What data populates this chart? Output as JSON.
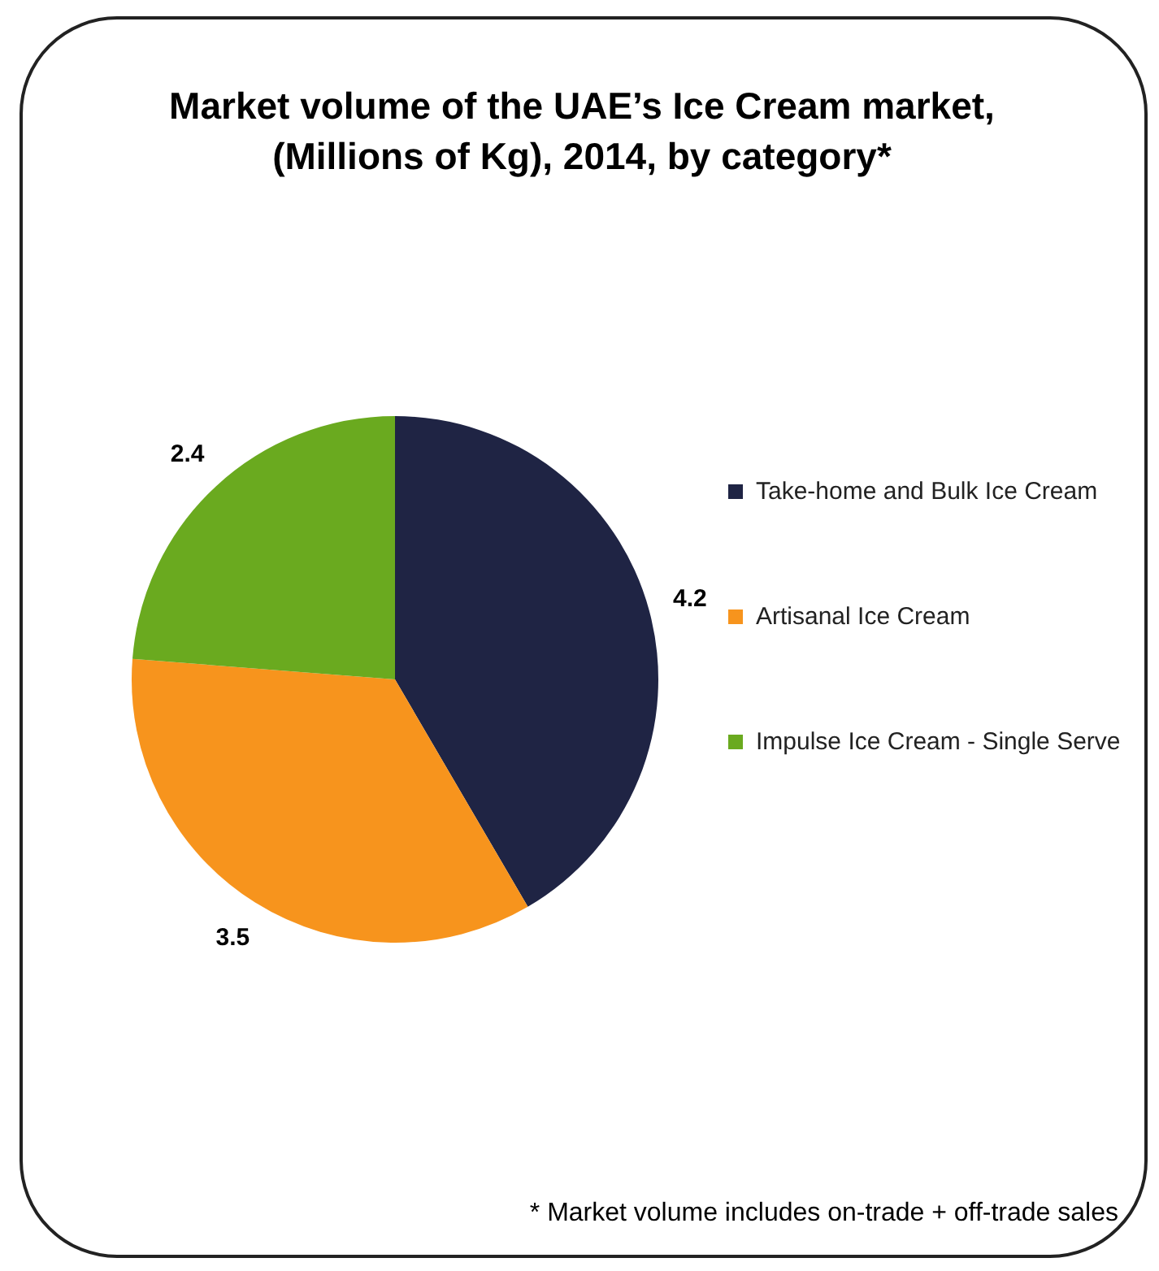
{
  "chart_data": {
    "type": "pie",
    "title": "Market volume of the UAE’s Ice Cream market, (Millions of Kg), 2014, by category*",
    "categories": [
      "Take-home and Bulk Ice Cream",
      "Artisanal Ice Cream",
      "Impulse Ice Cream - Single Serve"
    ],
    "values": [
      4.2,
      3.5,
      2.4
    ],
    "colors": [
      "#1f2444",
      "#f7941d",
      "#6aaa1f"
    ],
    "data_labels": true,
    "legend": "right",
    "annotations": [
      "* Market volume includes on-trade + off-trade sales"
    ]
  }
}
